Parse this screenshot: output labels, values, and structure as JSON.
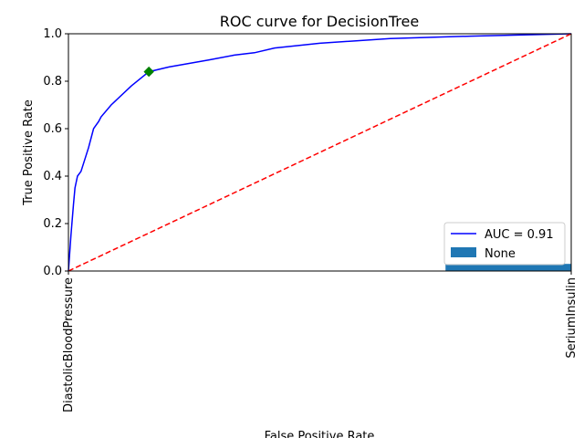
{
  "chart_data": {
    "type": "line",
    "title": "ROC curve for DecisionTree",
    "xlabel": "False Positive Rate",
    "ylabel": "True Positive Rate",
    "xlim": [
      0,
      1
    ],
    "ylim": [
      0,
      1
    ],
    "grid": false,
    "x_tick_labels": [
      "DiastolicBloodPressure",
      "SeriumInsulin"
    ],
    "y_ticks": [
      0.0,
      0.2,
      0.4,
      0.6,
      0.8,
      1.0
    ],
    "y_tick_labels": [
      "0.0",
      "0.2",
      "0.4",
      "0.6",
      "0.8",
      "1.0"
    ],
    "series": [
      {
        "name": "AUC = 0.91",
        "type": "line",
        "color": "#0000ff",
        "x": [
          0.0,
          0.005,
          0.01,
          0.013,
          0.018,
          0.025,
          0.04,
          0.05,
          0.06,
          0.065,
          0.085,
          0.125,
          0.16,
          0.2,
          0.28,
          0.33,
          0.37,
          0.41,
          0.5,
          0.64,
          0.8,
          1.0
        ],
        "y": [
          0.0,
          0.15,
          0.28,
          0.35,
          0.4,
          0.42,
          0.52,
          0.6,
          0.63,
          0.65,
          0.7,
          0.78,
          0.84,
          0.86,
          0.89,
          0.91,
          0.92,
          0.94,
          0.96,
          0.98,
          0.99,
          1.0
        ]
      },
      {
        "name": "",
        "type": "line",
        "style": "dashed",
        "color": "#ff0000",
        "x": [
          0.0,
          1.0
        ],
        "y": [
          0.0,
          1.0
        ]
      },
      {
        "name": "",
        "type": "marker",
        "marker": "diamond",
        "color": "#008000",
        "x": [
          0.16
        ],
        "y": [
          0.84
        ]
      },
      {
        "name": "None",
        "type": "bar",
        "color": "#1f77b4",
        "x": [
          0.75,
          1.0
        ],
        "y": [
          0.0,
          0.03
        ]
      }
    ],
    "legend": {
      "placement": "lower-right",
      "entries": [
        {
          "label": "AUC = 0.91",
          "kind": "line",
          "color": "#0000ff"
        },
        {
          "label": "None",
          "kind": "patch",
          "color": "#1f77b4"
        }
      ]
    }
  }
}
